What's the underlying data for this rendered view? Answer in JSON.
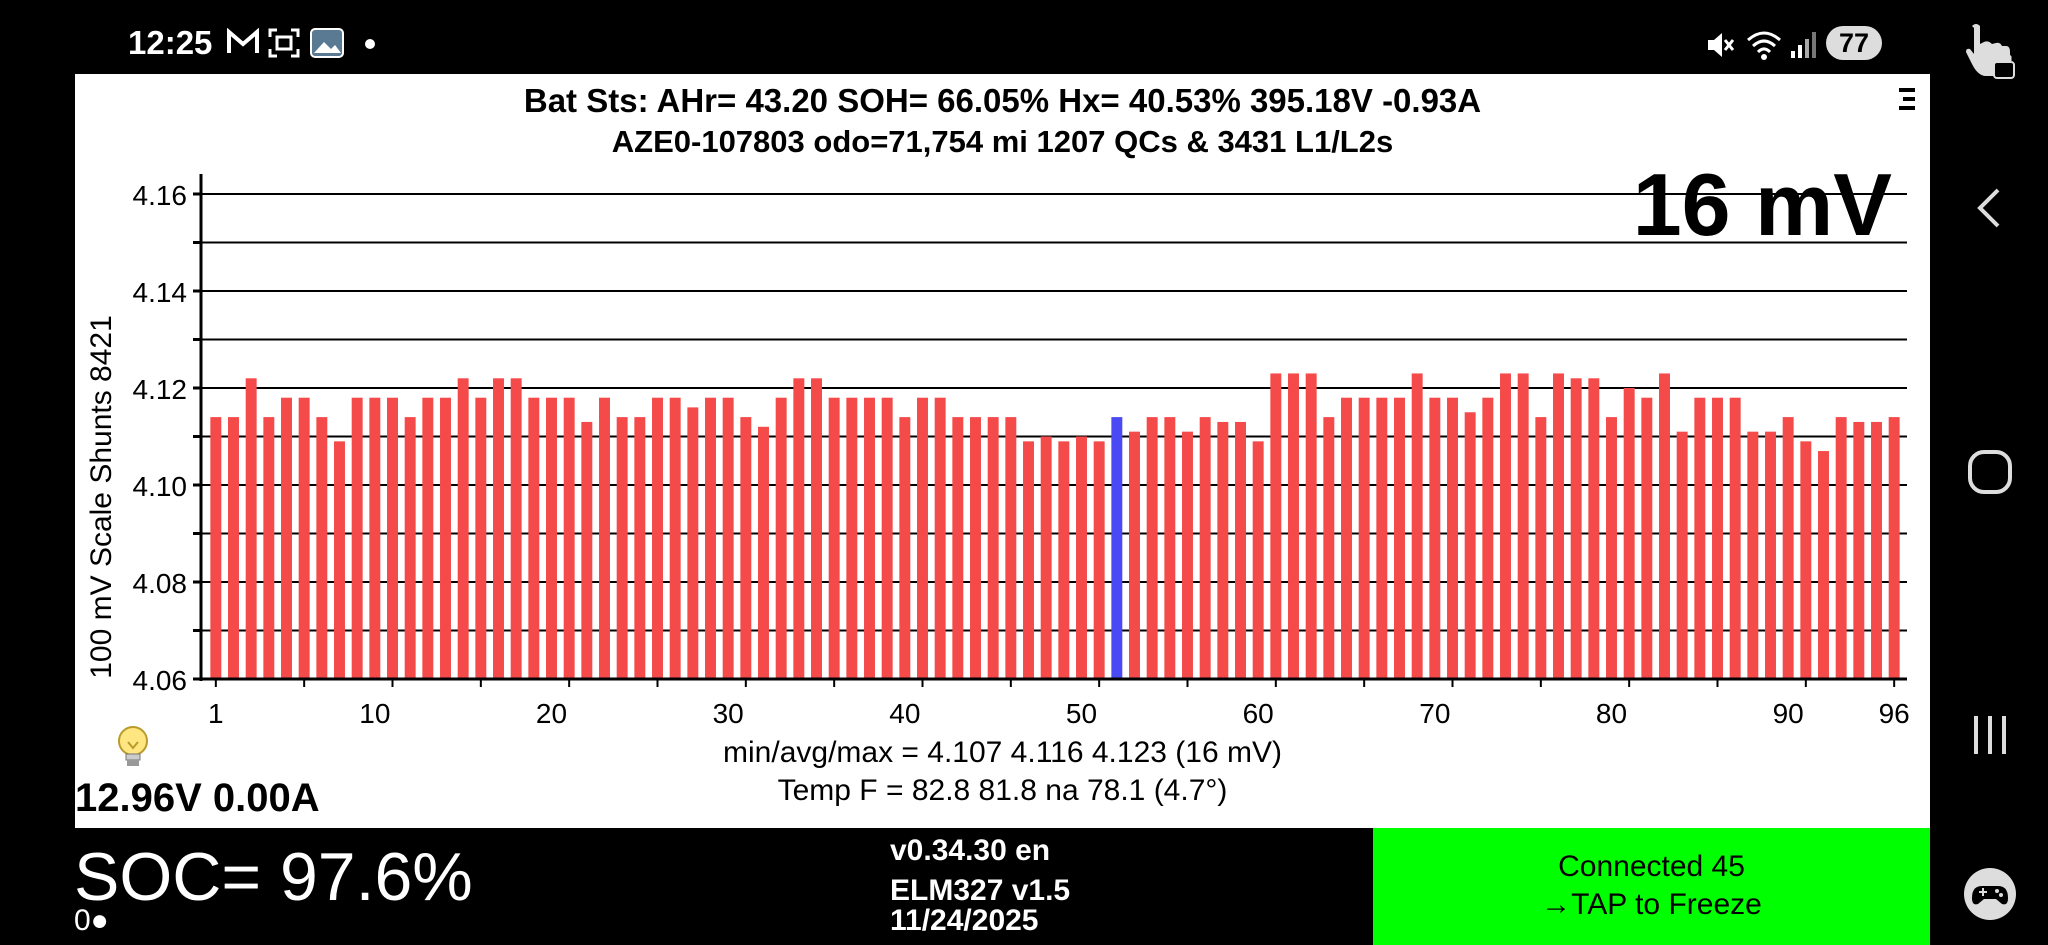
{
  "status_bar": {
    "time": "12:25",
    "battery_level": "77",
    "icons": [
      "gmail-icon",
      "screenshot-icon",
      "gallery-icon",
      "dot-icon",
      "mute-icon",
      "wifi-icon",
      "signal-icon"
    ]
  },
  "header": {
    "line1": "Bat Sts:  AHr= 43.20  SOH= 66.05%   Hx= 40.53%   395.18V -0.93A",
    "line2": "AZE0-107803 odo=71,754 mi  1207 QCs  &  3431 L1/L2s",
    "menu_icon": "menu-icon"
  },
  "chart_data": {
    "type": "bar",
    "ylabel": "100 mV Scale   Shunts 8421",
    "ylim": [
      4.06,
      4.16
    ],
    "yticks": [
      "4.16",
      "4.14",
      "4.12",
      "4.10",
      "4.08",
      "4.06"
    ],
    "xticks": [
      "1",
      "10",
      "20",
      "30",
      "40",
      "50",
      "60",
      "70",
      "80",
      "90",
      "96"
    ],
    "x_range": [
      1,
      96
    ],
    "grid": true,
    "bar_color": "#f44a4a",
    "highlight_color": "#4a4af4",
    "highlight_index": 52,
    "values": [
      4.114,
      4.114,
      4.122,
      4.114,
      4.118,
      4.118,
      4.114,
      4.109,
      4.118,
      4.118,
      4.118,
      4.114,
      4.118,
      4.118,
      4.122,
      4.118,
      4.122,
      4.122,
      4.118,
      4.118,
      4.118,
      4.113,
      4.118,
      4.114,
      4.114,
      4.118,
      4.118,
      4.116,
      4.118,
      4.118,
      4.114,
      4.112,
      4.118,
      4.122,
      4.122,
      4.118,
      4.118,
      4.118,
      4.118,
      4.114,
      4.118,
      4.118,
      4.114,
      4.114,
      4.114,
      4.114,
      4.109,
      4.11,
      4.109,
      4.11,
      4.109,
      4.114,
      4.111,
      4.114,
      4.114,
      4.111,
      4.114,
      4.113,
      4.113,
      4.109,
      4.123,
      4.123,
      4.123,
      4.114,
      4.118,
      4.118,
      4.118,
      4.118,
      4.123,
      4.118,
      4.118,
      4.115,
      4.118,
      4.123,
      4.123,
      4.114,
      4.123,
      4.122,
      4.122,
      4.114,
      4.12,
      4.118,
      4.123,
      4.111,
      4.118,
      4.118,
      4.118,
      4.111,
      4.111,
      4.114,
      4.109,
      4.107,
      4.114,
      4.113,
      4.113,
      4.114
    ]
  },
  "spread": "16 mV",
  "stats": {
    "line1": "min/avg/max = 4.107 4.116 4.123  (16 mV)",
    "line2": "Temp F = 82.8  81.8  na  78.1  (4.7°)"
  },
  "aux": {
    "voltage": "12.96V 0.00A",
    "bulb_icon": "lightbulb-icon"
  },
  "bottom": {
    "soc": "SOC= 97.6%",
    "soc_sub": "0●",
    "version_line1": "v0.34.30 en",
    "version_line2": "ELM327 v1.5",
    "date": "11/24/2025",
    "connect_line1": "Connected 45",
    "connect_line2": "→TAP to Freeze",
    "connect_color": "#00ff00"
  },
  "nav": {
    "icons": [
      "touch-lock-icon",
      "back-icon",
      "home-icon",
      "recents-icon",
      "game-controller-icon"
    ]
  }
}
